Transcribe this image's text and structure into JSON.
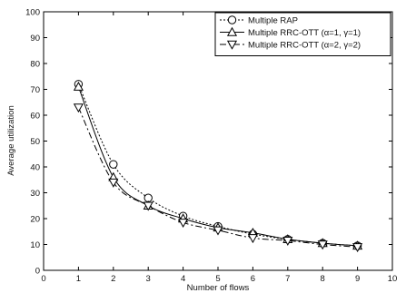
{
  "chart_data": {
    "type": "line",
    "title": "",
    "xlabel": "Number of flows",
    "ylabel": "Average utilization",
    "xlim": [
      0,
      10
    ],
    "ylim": [
      0,
      100
    ],
    "xticks": [
      0,
      1,
      2,
      3,
      4,
      5,
      6,
      7,
      8,
      9,
      10
    ],
    "yticks": [
      0,
      10,
      20,
      30,
      40,
      50,
      60,
      70,
      80,
      90,
      100
    ],
    "grid": false,
    "legend_position": "top-right",
    "x": [
      1,
      2,
      3,
      4,
      5,
      6,
      7,
      8,
      9
    ],
    "series": [
      {
        "name": "Multiple RAP",
        "marker": "circle",
        "dash": "dotted",
        "values": [
          72,
          41,
          28,
          21,
          17,
          14,
          12,
          10.5,
          9.5
        ]
      },
      {
        "name": "Multiple RRC-OTT (α=1, γ=1)",
        "marker": "triangle-up",
        "dash": "solid",
        "values": [
          71,
          36,
          25,
          20,
          16.5,
          14.5,
          12,
          10.5,
          9.5
        ]
      },
      {
        "name": "Multiple RRC-OTT (α=2, γ=2)",
        "marker": "triangle-down",
        "dash": "dashdot",
        "values": [
          63,
          34,
          25,
          18.5,
          15.5,
          12.5,
          11.5,
          10,
          9
        ]
      }
    ]
  }
}
